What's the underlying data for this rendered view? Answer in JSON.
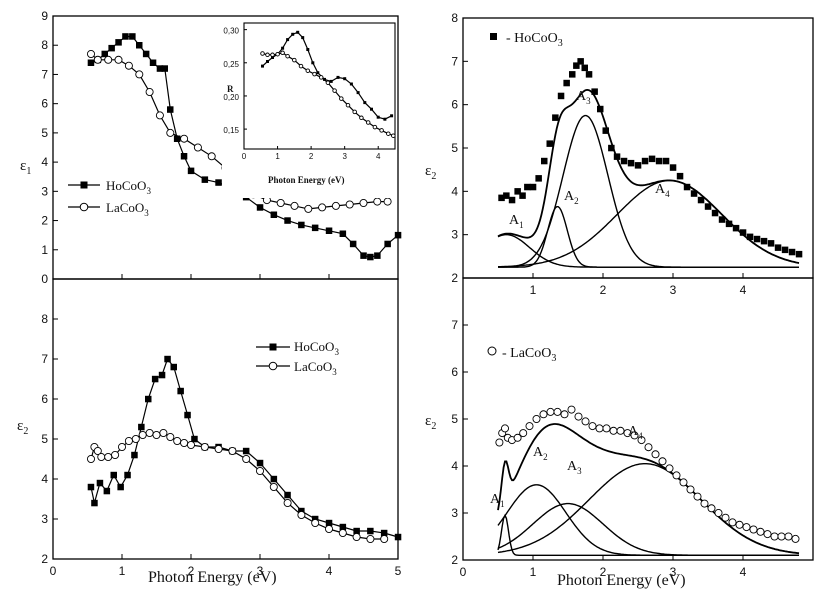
{
  "figure": {
    "shared_xlabel_left": "Photon Energy (eV)",
    "shared_xlabel_right": "Photon Energy (eV)"
  },
  "chart_data": [
    {
      "id": "top-left",
      "type": "line",
      "ylabel": "ε1",
      "xlim": [
        0,
        5
      ],
      "ylim": [
        0,
        9
      ],
      "xticks": [
        0,
        1,
        2,
        3,
        4,
        5
      ],
      "xtick_labels": [
        "",
        "",
        "",
        "",
        "",
        ""
      ],
      "yticks": [
        0,
        1,
        2,
        3,
        4,
        5,
        6,
        7,
        8,
        9
      ],
      "ytick_labels": [
        "0",
        "1",
        "2",
        "3",
        "4",
        "5",
        "6",
        "7",
        "8",
        "9"
      ],
      "legend": "center-left",
      "series": [
        {
          "name": "HoCoO3",
          "marker": "square",
          "x": [
            0.55,
            0.65,
            0.75,
            0.85,
            0.95,
            1.05,
            1.15,
            1.25,
            1.35,
            1.45,
            1.55,
            1.62,
            1.7,
            1.8,
            1.9,
            2.0,
            2.2,
            2.4,
            2.6,
            2.8,
            3.0,
            3.2,
            3.4,
            3.6,
            3.8,
            4.0,
            4.2,
            4.35,
            4.5,
            4.6,
            4.7,
            4.85,
            5.0
          ],
          "y": [
            7.4,
            7.5,
            7.7,
            7.9,
            8.1,
            8.3,
            8.3,
            8.0,
            7.7,
            7.4,
            7.2,
            7.2,
            5.8,
            4.8,
            4.2,
            3.7,
            3.4,
            3.3,
            3.1,
            2.8,
            2.45,
            2.2,
            2.0,
            1.85,
            1.75,
            1.65,
            1.55,
            1.2,
            0.8,
            0.75,
            0.8,
            1.2,
            1.5
          ]
        },
        {
          "name": "LaCoO3",
          "marker": "circle",
          "x": [
            0.55,
            0.65,
            0.8,
            0.95,
            1.1,
            1.25,
            1.4,
            1.55,
            1.7,
            1.9,
            2.1,
            2.3,
            2.5,
            2.7,
            2.9,
            3.1,
            3.3,
            3.5,
            3.7,
            3.9,
            4.1,
            4.3,
            4.5,
            4.7,
            4.85
          ],
          "y": [
            7.7,
            7.5,
            7.5,
            7.5,
            7.3,
            7.0,
            6.4,
            5.6,
            5.0,
            4.8,
            4.5,
            4.2,
            3.8,
            3.3,
            2.9,
            2.7,
            2.6,
            2.5,
            2.4,
            2.45,
            2.5,
            2.55,
            2.6,
            2.65,
            2.65
          ]
        }
      ]
    },
    {
      "id": "inset",
      "type": "line",
      "ylabel": "R",
      "xlabel": "Photon Energy (eV)",
      "xlim": [
        0,
        4.5
      ],
      "ylim": [
        0.12,
        0.31
      ],
      "xticks": [
        0,
        1,
        2,
        3,
        4
      ],
      "xtick_labels": [
        "0",
        "1",
        "2",
        "3",
        "4"
      ],
      "yticks": [
        0.15,
        0.2,
        0.25,
        0.3
      ],
      "ytick_labels": [
        "0,15",
        "0,20",
        "0,25",
        "0,30"
      ],
      "series": [
        {
          "name": "HoCoO3",
          "marker": "square",
          "x": [
            0.55,
            0.7,
            0.85,
            1.0,
            1.15,
            1.3,
            1.45,
            1.6,
            1.75,
            1.9,
            2.05,
            2.2,
            2.4,
            2.6,
            2.8,
            3.0,
            3.2,
            3.4,
            3.6,
            3.8,
            4.0,
            4.2,
            4.4
          ],
          "y": [
            0.245,
            0.252,
            0.258,
            0.263,
            0.272,
            0.285,
            0.293,
            0.296,
            0.288,
            0.27,
            0.25,
            0.235,
            0.225,
            0.222,
            0.228,
            0.226,
            0.218,
            0.205,
            0.19,
            0.18,
            0.168,
            0.165,
            0.17
          ]
        },
        {
          "name": "LaCoO3",
          "marker": "circle",
          "x": [
            0.55,
            0.7,
            0.85,
            1.0,
            1.15,
            1.3,
            1.5,
            1.7,
            1.9,
            2.1,
            2.3,
            2.5,
            2.7,
            2.9,
            3.1,
            3.3,
            3.5,
            3.7,
            3.9,
            4.1,
            4.3,
            4.45
          ],
          "y": [
            0.264,
            0.262,
            0.262,
            0.263,
            0.265,
            0.26,
            0.254,
            0.245,
            0.238,
            0.233,
            0.228,
            0.22,
            0.208,
            0.196,
            0.186,
            0.176,
            0.167,
            0.16,
            0.153,
            0.148,
            0.143,
            0.14
          ]
        }
      ]
    },
    {
      "id": "bottom-left",
      "type": "line",
      "ylabel": "ε2",
      "xlabel": "Photon Energy (eV)",
      "xlim": [
        0,
        5
      ],
      "ylim": [
        2,
        9
      ],
      "xticks": [
        0,
        1,
        2,
        3,
        4,
        5
      ],
      "xtick_labels": [
        "0",
        "1",
        "2",
        "3",
        "4",
        "5"
      ],
      "yticks": [
        2,
        3,
        4,
        5,
        6,
        7,
        8
      ],
      "ytick_labels": [
        "2",
        "3",
        "4",
        "5",
        "6",
        "7",
        "8"
      ],
      "legend": "top-right",
      "series": [
        {
          "name": "HoCoO3",
          "marker": "square",
          "x": [
            0.55,
            0.6,
            0.68,
            0.78,
            0.88,
            0.98,
            1.08,
            1.18,
            1.28,
            1.38,
            1.48,
            1.58,
            1.66,
            1.75,
            1.85,
            1.95,
            2.05,
            2.2,
            2.4,
            2.6,
            2.8,
            3.0,
            3.2,
            3.4,
            3.6,
            3.8,
            4.0,
            4.2,
            4.4,
            4.6,
            4.8,
            5.0
          ],
          "y": [
            3.8,
            3.4,
            3.9,
            3.7,
            4.1,
            3.8,
            4.1,
            4.6,
            5.3,
            6.0,
            6.5,
            6.6,
            7.0,
            6.8,
            6.2,
            5.6,
            5.0,
            4.8,
            4.8,
            4.7,
            4.7,
            4.4,
            4.0,
            3.6,
            3.2,
            3.0,
            2.9,
            2.8,
            2.7,
            2.7,
            2.65,
            2.55
          ]
        },
        {
          "name": "LaCoO3",
          "marker": "circle",
          "x": [
            0.55,
            0.6,
            0.65,
            0.7,
            0.8,
            0.9,
            1.0,
            1.1,
            1.2,
            1.3,
            1.4,
            1.5,
            1.6,
            1.7,
            1.8,
            1.9,
            2.0,
            2.2,
            2.4,
            2.6,
            2.8,
            3.0,
            3.2,
            3.4,
            3.6,
            3.8,
            4.0,
            4.2,
            4.4,
            4.6,
            4.8
          ],
          "y": [
            4.5,
            4.8,
            4.7,
            4.55,
            4.55,
            4.6,
            4.8,
            4.95,
            5.0,
            5.1,
            5.15,
            5.1,
            5.15,
            5.05,
            4.95,
            4.9,
            4.85,
            4.8,
            4.75,
            4.7,
            4.5,
            4.2,
            3.8,
            3.4,
            3.1,
            2.9,
            2.75,
            2.65,
            2.55,
            2.5,
            2.5
          ]
        }
      ]
    },
    {
      "id": "top-right",
      "type": "line",
      "ylabel": "ε2",
      "xlim": [
        0,
        5
      ],
      "ylim": [
        2,
        8
      ],
      "xticks": [
        0,
        1,
        2,
        3,
        4
      ],
      "xtick_labels": [
        "",
        "1",
        "2",
        "3",
        "4"
      ],
      "yticks": [
        2,
        3,
        4,
        5,
        6,
        7,
        8
      ],
      "ytick_labels": [
        "2",
        "3",
        "4",
        "5",
        "6",
        "7",
        "8"
      ],
      "legend": "top-left",
      "baseline": 2.25,
      "series": [
        {
          "name": "HoCoO3",
          "marker": "square",
          "x": [
            0.55,
            0.62,
            0.7,
            0.78,
            0.85,
            0.92,
            1.0,
            1.08,
            1.16,
            1.24,
            1.32,
            1.4,
            1.48,
            1.56,
            1.62,
            1.68,
            1.74,
            1.8,
            1.88,
            1.96,
            2.04,
            2.12,
            2.2,
            2.3,
            2.4,
            2.5,
            2.6,
            2.7,
            2.8,
            2.9,
            3.0,
            3.1,
            3.2,
            3.3,
            3.4,
            3.5,
            3.6,
            3.7,
            3.8,
            3.9,
            4.0,
            4.1,
            4.2,
            4.3,
            4.4,
            4.5,
            4.6,
            4.7,
            4.8
          ],
          "y": [
            3.85,
            3.9,
            3.8,
            4.0,
            3.9,
            4.1,
            4.1,
            4.3,
            4.7,
            5.1,
            5.7,
            6.2,
            6.5,
            6.7,
            6.9,
            7.0,
            6.85,
            6.7,
            6.3,
            5.9,
            5.4,
            5.0,
            4.8,
            4.7,
            4.65,
            4.6,
            4.7,
            4.75,
            4.7,
            4.7,
            4.55,
            4.35,
            4.1,
            3.95,
            3.8,
            3.65,
            3.5,
            3.35,
            3.25,
            3.15,
            3.05,
            2.95,
            2.9,
            2.85,
            2.8,
            2.7,
            2.65,
            2.6,
            2.55
          ]
        }
      ],
      "peaks": [
        {
          "label": "A1",
          "center": 0.62,
          "amplitude": 0.75,
          "width": 0.33
        },
        {
          "label": "A2",
          "center": 1.35,
          "amplitude": 1.4,
          "width": 0.14
        },
        {
          "label": "A3",
          "center": 1.75,
          "amplitude": 3.5,
          "width": 0.32
        },
        {
          "label": "A4",
          "center": 2.95,
          "amplitude": 2.0,
          "width": 0.75
        }
      ]
    },
    {
      "id": "bottom-right",
      "type": "line",
      "ylabel": "ε2",
      "xlabel": "Photon Energy (eV)",
      "xlim": [
        0,
        5
      ],
      "ylim": [
        2,
        8
      ],
      "xticks": [
        0,
        1,
        2,
        3,
        4
      ],
      "xtick_labels": [
        "0",
        "1",
        "2",
        "3",
        "4"
      ],
      "yticks": [
        2,
        3,
        4,
        5,
        6,
        7
      ],
      "ytick_labels": [
        "2",
        "3",
        "4",
        "5",
        "6",
        "7"
      ],
      "legend": "top-left",
      "baseline": 2.1,
      "series": [
        {
          "name": "LaCoO3",
          "marker": "circle",
          "x": [
            0.52,
            0.56,
            0.6,
            0.64,
            0.7,
            0.78,
            0.86,
            0.95,
            1.05,
            1.15,
            1.25,
            1.35,
            1.45,
            1.55,
            1.65,
            1.75,
            1.85,
            1.95,
            2.05,
            2.15,
            2.25,
            2.35,
            2.45,
            2.55,
            2.65,
            2.75,
            2.85,
            2.95,
            3.05,
            3.15,
            3.25,
            3.35,
            3.45,
            3.55,
            3.65,
            3.75,
            3.85,
            3.95,
            4.05,
            4.15,
            4.25,
            4.35,
            4.45,
            4.55,
            4.65,
            4.75
          ],
          "y": [
            4.5,
            4.7,
            4.8,
            4.6,
            4.55,
            4.6,
            4.7,
            4.85,
            5.0,
            5.1,
            5.15,
            5.15,
            5.1,
            5.2,
            5.05,
            4.95,
            4.85,
            4.8,
            4.8,
            4.75,
            4.75,
            4.7,
            4.65,
            4.55,
            4.4,
            4.25,
            4.1,
            3.95,
            3.8,
            3.65,
            3.5,
            3.35,
            3.2,
            3.1,
            3.0,
            2.9,
            2.8,
            2.75,
            2.7,
            2.65,
            2.6,
            2.55,
            2.5,
            2.5,
            2.5,
            2.45
          ]
        }
      ],
      "peaks": [
        {
          "label": "A1",
          "center": 0.6,
          "amplitude": 0.85,
          "width": 0.05
        },
        {
          "label": "A2",
          "center": 1.05,
          "amplitude": 1.5,
          "width": 0.42
        },
        {
          "label": "A3",
          "center": 1.5,
          "amplitude": 1.1,
          "width": 0.5
        },
        {
          "label": "A4",
          "center": 2.6,
          "amplitude": 1.95,
          "width": 0.8
        }
      ]
    }
  ]
}
